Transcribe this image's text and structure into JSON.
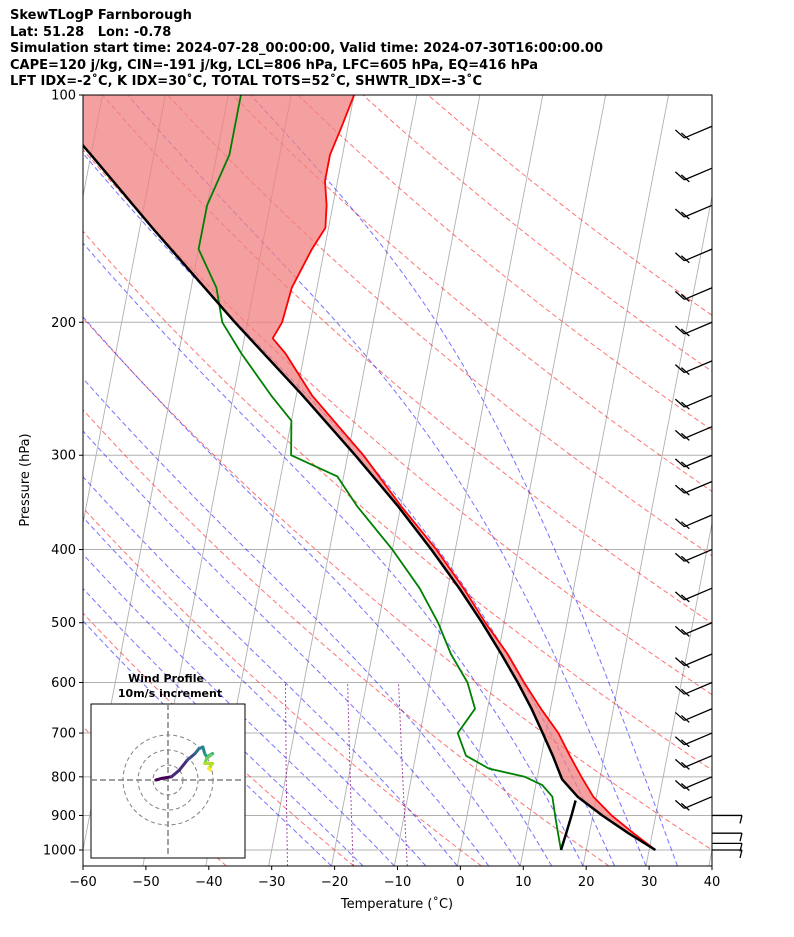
{
  "header": {
    "line1": "SkewTLogP Farnborough",
    "line2": "Lat: 51.28   Lon: -0.78",
    "line3": "Simulation start time: 2024-07-28_00:00:00, Valid time: 2024-07-30T16:00:00.00",
    "line4": "CAPE=120 j/kg, CIN=-191 j/kg, LCL=806 hPa, LFC=605 hPa, EQ=416 hPa",
    "line5": "LFT IDX=-2˚C, K IDX=30˚C, TOTAL TOTS=52˚C, SHWTR_IDX=-3˚C"
  },
  "colors": {
    "temperature": "#ff0000",
    "dewpoint": "#008000",
    "parcel": "#000000",
    "cape_fill": "#7fb0d5",
    "cin_fill": "#f08080",
    "dry_adiabat": "#ff0000",
    "moist_adiabat": "#0000ff",
    "mixing_ratio": "#800080",
    "isotherm": "#808080"
  },
  "chart_data": {
    "type": "line",
    "subtype": "skewt-logp",
    "title": "",
    "xlabel": "Temperature (˚C)",
    "ylabel": "Pressure (hPa)",
    "xlim": [
      -60,
      40
    ],
    "ylim": [
      1050,
      100
    ],
    "y_scale": "log",
    "grid": true,
    "x_ticks": [
      -60,
      -50,
      -40,
      -30,
      -20,
      -10,
      0,
      10,
      20,
      30,
      40
    ],
    "x_tick_labels": [
      "−60",
      "−50",
      "−40",
      "−30",
      "−20",
      "−10",
      "0",
      "10",
      "20",
      "30",
      "40"
    ],
    "y_ticks": [
      1000,
      900,
      800,
      700,
      600,
      500,
      400,
      300,
      200,
      100
    ],
    "y_tick_labels": [
      "1000",
      "900",
      "800",
      "700",
      "600",
      "500",
      "400",
      "300",
      "200",
      "100"
    ],
    "series": [
      {
        "kind": "temperature",
        "pressure": [
          1000,
          950,
          900,
          850,
          800,
          750,
          700,
          650,
          600,
          550,
          500,
          450,
          400,
          350,
          300,
          250,
          220,
          210,
          200,
          180,
          160,
          150,
          140,
          130,
          120,
          110,
          100
        ],
        "temperature": [
          31,
          27,
          23,
          19.5,
          17,
          14.5,
          12,
          8.5,
          5,
          1.5,
          -3,
          -7.5,
          -13,
          -20,
          -27.5,
          -37.5,
          -43,
          -45.5,
          -44.5,
          -44,
          -42,
          -40.5,
          -41,
          -42,
          -42,
          -41,
          -40
        ]
      },
      {
        "kind": "dewpoint",
        "pressure": [
          1000,
          950,
          900,
          850,
          820,
          800,
          780,
          750,
          700,
          650,
          600,
          550,
          500,
          450,
          400,
          350,
          320,
          300,
          270,
          250,
          220,
          200,
          180,
          160,
          140,
          120,
          100
        ],
        "dewpoint": [
          16,
          15,
          14,
          13,
          11,
          8,
          2,
          -2,
          -4,
          -2,
          -4,
          -7.5,
          -10.5,
          -14.5,
          -20,
          -27,
          -31,
          -39,
          -40,
          -44,
          -50,
          -54,
          -56,
          -60,
          -60,
          -58,
          -58
        ]
      },
      {
        "kind": "parcel",
        "pressure": [
          1000,
          950,
          900,
          850,
          806,
          750,
          700,
          650,
          600,
          550,
          500,
          450,
          400,
          350,
          300,
          250,
          200,
          150,
          120,
          100
        ],
        "temperature": [
          31,
          26.2,
          21.5,
          17,
          14,
          11.8,
          9.5,
          7,
          4,
          0.5,
          -3.5,
          -8.2,
          -13.8,
          -20.5,
          -28.8,
          -39,
          -52,
          -68,
          -80,
          -90
        ]
      },
      {
        "kind": "parcel-low",
        "pressure": [
          1000,
          950,
          900,
          860
        ],
        "temperature": [
          16,
          16.3,
          16.6,
          16.8
        ]
      }
    ],
    "wind_barb_pressures": [
      1000,
      980,
      950,
      900,
      850,
      800,
      750,
      700,
      650,
      600,
      550,
      500,
      450,
      400,
      360,
      325,
      300,
      275,
      250,
      225,
      200,
      180,
      160,
      140,
      125,
      110
    ],
    "inset": {
      "title_line1": "Wind Profile",
      "title_line2": "10m/s increment",
      "rings_ms": [
        10,
        20,
        30
      ],
      "hodograph_u": [
        0,
        1.5,
        4,
        6,
        8,
        9,
        10,
        11,
        12,
        12.5,
        13,
        14.5,
        14,
        13,
        12.5,
        14.5,
        13.5,
        14
      ],
      "hodograph_v": [
        0,
        0.5,
        1,
        3,
        6,
        7,
        8,
        9.5,
        10,
        8,
        7,
        8,
        7.5,
        6.5,
        5,
        5,
        3.5,
        3
      ]
    }
  }
}
